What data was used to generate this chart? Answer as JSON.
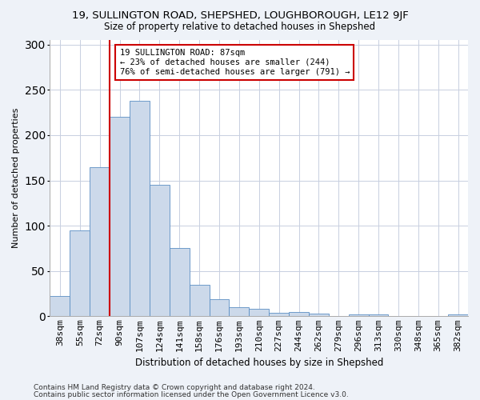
{
  "title": "19, SULLINGTON ROAD, SHEPSHED, LOUGHBOROUGH, LE12 9JF",
  "subtitle": "Size of property relative to detached houses in Shepshed",
  "xlabel": "Distribution of detached houses by size in Shepshed",
  "ylabel": "Number of detached properties",
  "categories": [
    "38sqm",
    "55sqm",
    "72sqm",
    "90sqm",
    "107sqm",
    "124sqm",
    "141sqm",
    "158sqm",
    "176sqm",
    "193sqm",
    "210sqm",
    "227sqm",
    "244sqm",
    "262sqm",
    "279sqm",
    "296sqm",
    "313sqm",
    "330sqm",
    "348sqm",
    "365sqm",
    "382sqm"
  ],
  "bar_heights": [
    22,
    95,
    165,
    220,
    238,
    145,
    75,
    35,
    19,
    10,
    8,
    4,
    5,
    3,
    0,
    2,
    2,
    0,
    0,
    0,
    2
  ],
  "bar_color": "#ccd9ea",
  "bar_edge_color": "#5b8ec4",
  "vline_x": 3.5,
  "vline_color": "#cc0000",
  "annotation_text": "19 SULLINGTON ROAD: 87sqm\n← 23% of detached houses are smaller (244)\n76% of semi-detached houses are larger (791) →",
  "annotation_box_color": "white",
  "annotation_box_edge_color": "#cc0000",
  "ylim": [
    0,
    305
  ],
  "yticks": [
    0,
    50,
    100,
    150,
    200,
    250,
    300
  ],
  "footer1": "Contains HM Land Registry data © Crown copyright and database right 2024.",
  "footer2": "Contains public sector information licensed under the Open Government Licence v3.0.",
  "bg_color": "#eef2f8",
  "plot_bg_color": "#ffffff",
  "grid_color": "#c8cfe0",
  "title_fontsize": 9.5,
  "subtitle_fontsize": 8.5,
  "xlabel_fontsize": 8.5,
  "ylabel_fontsize": 8,
  "tick_fontsize": 8,
  "ann_fontsize": 7.5,
  "footer_fontsize": 6.5
}
